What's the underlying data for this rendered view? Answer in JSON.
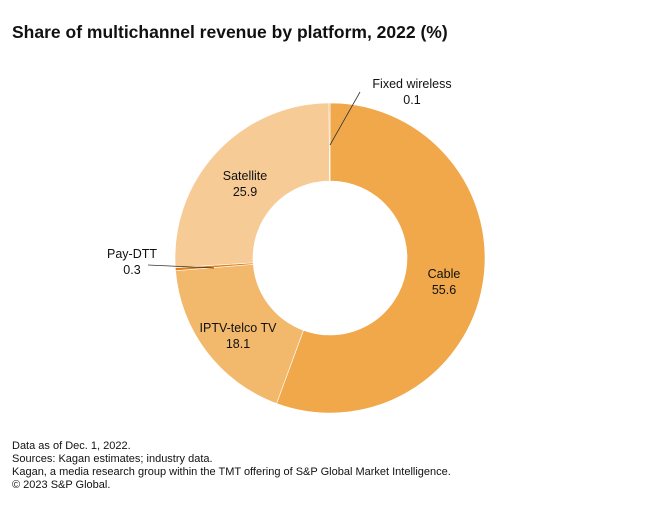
{
  "title": "Share of multichannel revenue by platform, 2022 (%)",
  "chart_data": {
    "type": "pie",
    "title": "Share of multichannel revenue by platform, 2022 (%)",
    "style": "donut",
    "start": "12 o'clock",
    "direction": "clockwise",
    "slices": [
      {
        "name": "Cable",
        "value": 55.6,
        "label": "55.6",
        "color": "#f0a84a"
      },
      {
        "name": "IPTV-telco TV",
        "value": 18.1,
        "label": "18.1",
        "color": "#f2b96c"
      },
      {
        "name": "Pay-DTT",
        "value": 0.3,
        "label": "0.3",
        "color": "#e67e14"
      },
      {
        "name": "Satellite",
        "value": 25.9,
        "label": "25.9",
        "color": "#f6cb96"
      },
      {
        "name": "Fixed wireless",
        "value": 0.1,
        "label": "0.1",
        "color": "#e8901e"
      }
    ]
  },
  "footer": {
    "data_as_of": "Data as of  Dec. 1, 2022.",
    "sources": "Sources: Kagan estimates; industry data.",
    "kagan": "Kagan, a media research group within the TMT offering of S&P Global Market Intelligence.",
    "copyright": "© 2023 S&P Global."
  }
}
